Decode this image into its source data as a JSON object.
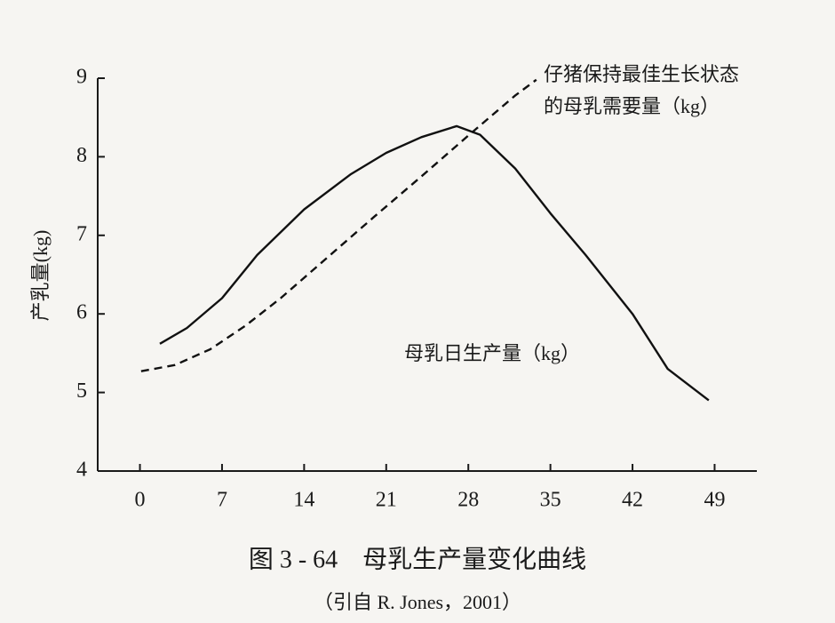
{
  "chart_data": {
    "type": "line",
    "y_label": "产乳量(kg)",
    "caption": "图 3 - 64　母乳生产量变化曲线",
    "source": "（引自 R. Jones，2001）",
    "xlim": [
      -3.6,
      52.6
    ],
    "xticks": [
      0,
      7,
      14,
      21,
      28,
      35,
      42,
      49
    ],
    "ylim": [
      4,
      9
    ],
    "yticks": [
      4,
      5,
      6,
      7,
      8,
      9
    ],
    "grid": false,
    "series": [
      {
        "name": "母乳日生产量（kg）",
        "color": "#111111",
        "line_style": "solid",
        "x": [
          1.7,
          4,
          7,
          10,
          14,
          18,
          21,
          24,
          27,
          29,
          32,
          35,
          38,
          42,
          45,
          48.5
        ],
        "values": [
          5.62,
          5.82,
          6.2,
          6.75,
          7.33,
          7.78,
          8.05,
          8.25,
          8.39,
          8.28,
          7.85,
          7.28,
          6.75,
          6.0,
          5.3,
          4.9
        ]
      },
      {
        "name": "仔猪保持最佳生长状态的母乳需要量（kg）",
        "color": "#111111",
        "line_style": "dashed",
        "x": [
          0.1,
          3,
          6,
          9,
          12,
          16,
          20,
          24,
          28,
          32,
          33.8
        ],
        "values": [
          5.27,
          5.35,
          5.55,
          5.85,
          6.2,
          6.72,
          7.24,
          7.75,
          8.27,
          8.78,
          8.98
        ]
      }
    ]
  }
}
